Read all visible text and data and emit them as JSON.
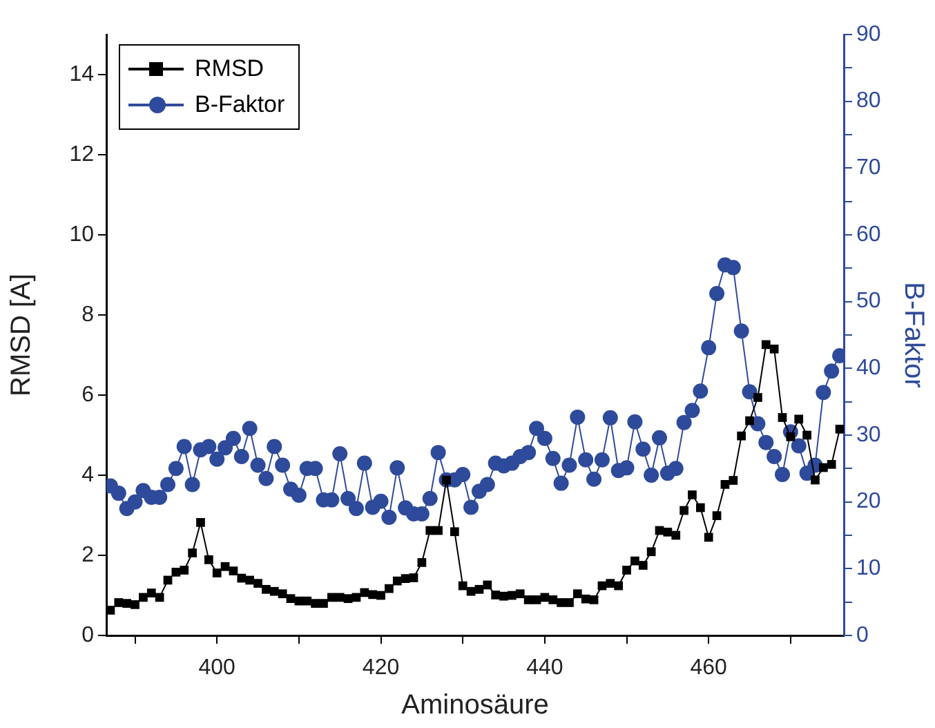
{
  "chart_data": {
    "type": "line",
    "xlabel": "Aminosäure",
    "ylabel": "RMSD [A]",
    "y2label": "B-Faktor",
    "x": [
      387,
      388,
      389,
      390,
      391,
      392,
      393,
      394,
      395,
      396,
      397,
      398,
      399,
      400,
      401,
      402,
      403,
      404,
      405,
      406,
      407,
      408,
      409,
      410,
      411,
      412,
      413,
      414,
      415,
      416,
      417,
      418,
      419,
      420,
      421,
      422,
      423,
      424,
      425,
      426,
      427,
      428,
      429,
      430,
      431,
      432,
      433,
      434,
      435,
      436,
      437,
      438,
      439,
      440,
      441,
      442,
      443,
      444,
      445,
      446,
      447,
      448,
      449,
      450,
      451,
      452,
      453,
      454,
      455,
      456,
      457,
      458,
      459,
      460,
      461,
      462,
      463,
      464,
      465,
      466,
      467,
      468,
      469,
      470,
      471,
      472,
      473,
      474,
      475,
      476
    ],
    "xlim": [
      386.5,
      476.5
    ],
    "xticks": [
      {
        "value": 390,
        "label": null
      },
      400,
      {
        "value": 410,
        "label": null
      },
      420,
      {
        "value": 430,
        "label": null
      },
      440,
      {
        "value": 450,
        "label": null
      },
      460,
      {
        "value": 470,
        "label": null
      }
    ],
    "ylim": [
      0,
      15
    ],
    "yticks": [
      0,
      2,
      4,
      6,
      8,
      10,
      12,
      14
    ],
    "y2lim": [
      0,
      90
    ],
    "y2ticks": [
      0,
      {
        "value": 5,
        "label": null
      },
      10,
      {
        "value": 15,
        "label": null
      },
      20,
      {
        "value": 25,
        "label": null
      },
      30,
      {
        "value": 35,
        "label": null
      },
      40,
      {
        "value": 45,
        "label": null
      },
      50,
      {
        "value": 55,
        "label": null
      },
      60,
      {
        "value": 65,
        "label": null
      },
      70,
      {
        "value": 75,
        "label": null
      },
      80,
      {
        "value": 85,
        "label": null
      },
      90
    ],
    "grid": false,
    "legend": "top left",
    "line_style": "solid",
    "series": [
      {
        "name": "RMSD",
        "color": "#000000",
        "marker": "square",
        "values": [
          0.63,
          0.82,
          0.8,
          0.77,
          0.95,
          1.06,
          0.95,
          1.38,
          1.58,
          1.63,
          2.06,
          2.82,
          1.89,
          1.56,
          1.72,
          1.61,
          1.43,
          1.38,
          1.3,
          1.15,
          1.1,
          1.04,
          0.92,
          0.86,
          0.86,
          0.8,
          0.8,
          0.95,
          0.95,
          0.92,
          0.95,
          1.07,
          1.02,
          1.0,
          1.17,
          1.36,
          1.42,
          1.44,
          1.82,
          2.62,
          2.62,
          3.88,
          2.59,
          1.24,
          1.1,
          1.15,
          1.26,
          1.01,
          0.98,
          1.0,
          1.04,
          0.89,
          0.89,
          0.95,
          0.89,
          0.82,
          0.82,
          1.04,
          0.91,
          0.89,
          1.24,
          1.3,
          1.24,
          1.63,
          1.86,
          1.75,
          2.09,
          2.62,
          2.58,
          2.5,
          3.12,
          3.51,
          3.19,
          2.45,
          2.99,
          3.77,
          3.87,
          4.98,
          5.36,
          5.94,
          7.26,
          7.15,
          5.44,
          4.96,
          5.4,
          5.0,
          3.88,
          4.19,
          4.27,
          5.15
        ]
      },
      {
        "name": "B-Faktor",
        "color": "#2e4a9a",
        "marker": "circle",
        "axis": "y2",
        "values": [
          22.4,
          21.3,
          19.0,
          20.0,
          21.7,
          20.7,
          20.7,
          22.6,
          25.0,
          28.3,
          22.6,
          27.8,
          28.3,
          26.4,
          28.1,
          29.5,
          26.8,
          31.0,
          25.5,
          23.5,
          28.3,
          25.5,
          21.9,
          21.0,
          25.0,
          25.0,
          20.3,
          20.3,
          27.2,
          20.5,
          19.0,
          25.8,
          19.2,
          20.1,
          17.7,
          25.1,
          19.1,
          18.2,
          18.2,
          20.5,
          27.4,
          23.3,
          23.3,
          24.1,
          19.2,
          21.6,
          22.6,
          25.8,
          25.4,
          25.8,
          26.8,
          27.4,
          31.0,
          29.5,
          26.5,
          22.8,
          25.5,
          32.7,
          26.3,
          23.4,
          26.3,
          32.6,
          24.7,
          25.1,
          32.0,
          27.9,
          24.0,
          29.6,
          24.3,
          25.0,
          31.9,
          33.7,
          36.6,
          43.1,
          51.2,
          55.5,
          55.1,
          45.6,
          36.5,
          31.7,
          28.9,
          26.8,
          24.1,
          30.5,
          28.4,
          24.3,
          25.5,
          36.4,
          39.6,
          41.9
        ]
      }
    ]
  }
}
